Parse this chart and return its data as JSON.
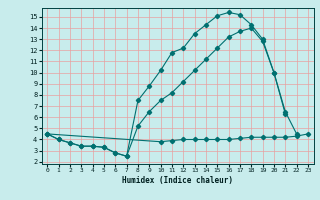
{
  "title": "",
  "xlabel": "Humidex (Indice chaleur)",
  "bg_color": "#c8ecec",
  "grid_color": "#e8a0a0",
  "line_color": "#007070",
  "marker_color": "#007070",
  "xlim": [
    -0.5,
    23.5
  ],
  "ylim": [
    1.8,
    15.8
  ],
  "xticks": [
    0,
    1,
    2,
    3,
    4,
    5,
    6,
    7,
    8,
    9,
    10,
    11,
    12,
    13,
    14,
    15,
    16,
    17,
    18,
    19,
    20,
    21,
    22,
    23
  ],
  "yticks": [
    2,
    3,
    4,
    5,
    6,
    7,
    8,
    9,
    10,
    11,
    12,
    13,
    14,
    15
  ],
  "curve1_x": [
    0,
    1,
    2,
    3,
    4,
    5,
    6,
    7,
    8,
    9,
    10,
    11,
    12,
    13,
    14,
    15,
    16,
    17,
    18,
    19,
    20,
    21
  ],
  "curve1_y": [
    4.5,
    4.0,
    3.7,
    3.4,
    3.4,
    3.3,
    2.8,
    2.5,
    7.5,
    8.8,
    10.2,
    11.8,
    12.2,
    13.5,
    14.3,
    15.1,
    15.4,
    15.2,
    14.3,
    13.0,
    10.0,
    6.3
  ],
  "curve2_x": [
    0,
    1,
    2,
    3,
    4,
    5,
    6,
    7,
    8,
    9,
    10,
    11,
    12,
    13,
    14,
    15,
    16,
    17,
    18,
    19,
    20,
    21,
    22
  ],
  "curve2_y": [
    4.5,
    4.0,
    3.7,
    3.4,
    3.4,
    3.3,
    2.8,
    2.5,
    5.2,
    6.5,
    7.5,
    8.2,
    9.2,
    10.2,
    11.2,
    12.2,
    13.2,
    13.7,
    14.0,
    12.8,
    10.0,
    6.5,
    4.5
  ],
  "curve3_x": [
    0,
    10,
    11,
    12,
    13,
    14,
    15,
    16,
    17,
    18,
    19,
    20,
    21,
    22,
    23
  ],
  "curve3_y": [
    4.5,
    3.8,
    3.9,
    4.0,
    4.0,
    4.0,
    4.0,
    4.0,
    4.1,
    4.2,
    4.2,
    4.2,
    4.2,
    4.3,
    4.5
  ]
}
